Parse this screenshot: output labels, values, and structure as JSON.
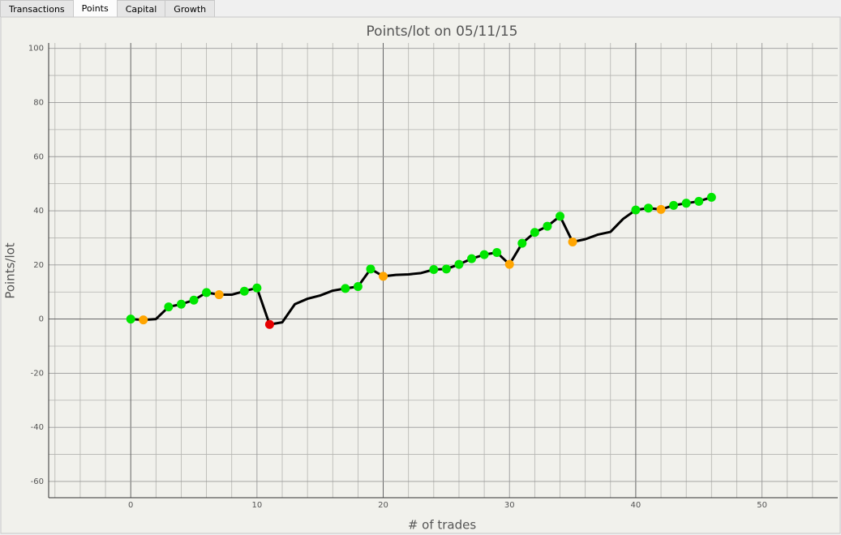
{
  "tabs": [
    "Transactions",
    "Points",
    "Capital",
    "Growth"
  ],
  "active_tab": 1,
  "chart_data": {
    "type": "line",
    "title": "Points/lot on 05/11/15",
    "x_label": "# of trades",
    "y_label": "Points/lot",
    "x": [
      0,
      1,
      2,
      3,
      4,
      5,
      6,
      7,
      8,
      9,
      10,
      11,
      12,
      13,
      14,
      15,
      16,
      17,
      18,
      19,
      20,
      21,
      22,
      23,
      24,
      25,
      26,
      27,
      28,
      29,
      30,
      31,
      32,
      33,
      34,
      35,
      36,
      37,
      38,
      39,
      40,
      41,
      42,
      43,
      44,
      45,
      46
    ],
    "series": [
      {
        "color": "#000000",
        "values": [
          0,
          -0.3,
          0,
          4.5,
          5.5,
          7,
          9.8,
          9,
          9,
          10.3,
          11.5,
          -2,
          -1.2,
          5.5,
          7.5,
          8.7,
          10.5,
          11.3,
          12,
          18.5,
          15.8,
          16.3,
          16.5,
          17,
          18.3,
          18.5,
          20.2,
          22.3,
          23.8,
          24.6,
          20.2,
          28,
          32,
          34.3,
          38,
          28.5,
          29.5,
          31.2,
          32.2,
          37,
          40.3,
          41,
          40.5,
          42,
          42.8,
          43.5,
          45
        ],
        "point_colors": [
          "#00e600",
          "#ffa500",
          null,
          "#00e600",
          "#00e600",
          "#00e600",
          "#00e600",
          "#ffa500",
          null,
          "#00e600",
          "#00e600",
          "#e60000",
          null,
          null,
          null,
          null,
          null,
          "#00e600",
          "#00e600",
          "#00e600",
          "#ffa500",
          null,
          null,
          null,
          "#00e600",
          "#00e600",
          "#00e600",
          "#00e600",
          "#00e600",
          "#00e600",
          "#ffa500",
          "#00e600",
          "#00e600",
          "#00e600",
          "#00e600",
          "#ffa500",
          null,
          null,
          null,
          null,
          "#00e600",
          "#00e600",
          "#ffa500",
          "#00e600",
          "#00e600",
          "#00e600",
          "#00e600"
        ]
      }
    ],
    "xlim": [
      -6.5,
      56
    ],
    "ylim": [
      -66,
      102
    ],
    "xticks": [
      0,
      10,
      20,
      30,
      40,
      50
    ],
    "yticks": [
      -60,
      -40,
      -20,
      0,
      20,
      40,
      60,
      80,
      100
    ],
    "x_minor_ticks": [
      -6,
      -4,
      -2,
      2,
      4,
      6,
      8,
      12,
      14,
      16,
      18,
      22,
      24,
      26,
      28,
      32,
      34,
      36,
      38,
      42,
      44,
      46,
      48,
      52,
      54
    ],
    "y_minor_ticks": [
      -50,
      -30,
      -10,
      10,
      30,
      50,
      70,
      90
    ],
    "grid": true
  }
}
